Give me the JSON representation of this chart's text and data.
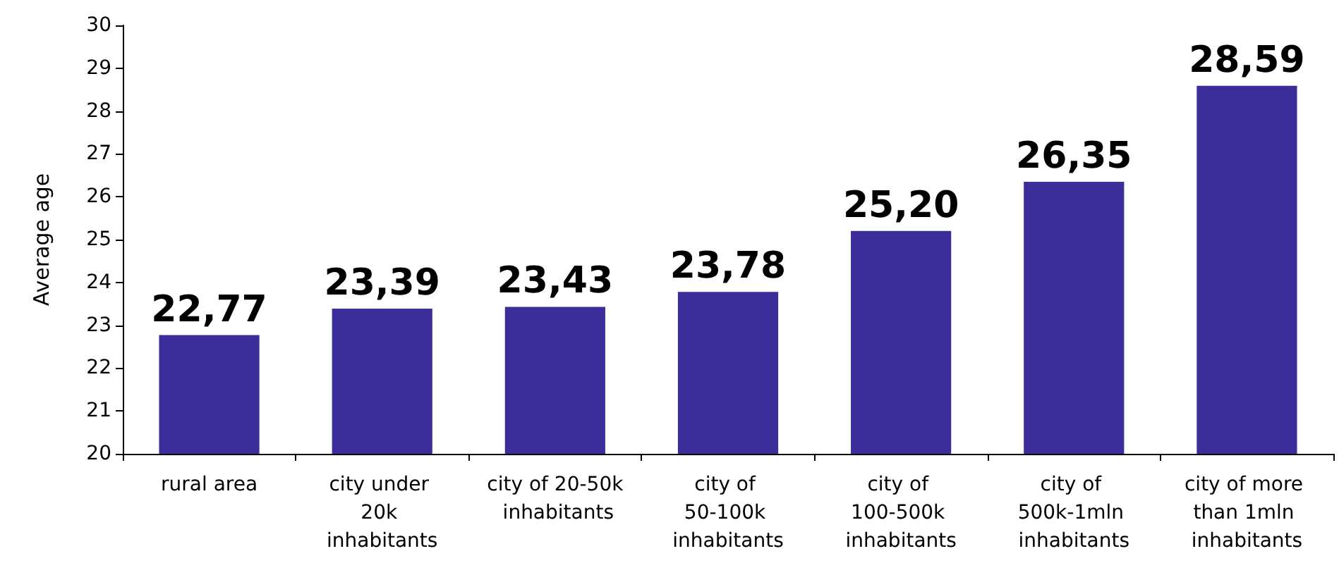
{
  "chart_data": {
    "type": "bar",
    "ylabel": "Average age",
    "categories": [
      "rural area",
      "city under 20k inhabitants",
      "city of 20-50k inhabitants",
      "city of 50-100k inhabitants",
      "city of 100-500k inhabitants",
      "city of 500k-1mln inhabitants",
      "city of more than 1mln inhabitants"
    ],
    "values": [
      22.77,
      23.39,
      23.43,
      23.78,
      25.2,
      26.35,
      28.59
    ],
    "value_labels": [
      "22,77",
      "23,39",
      "23,43",
      "23,78",
      "25,20",
      "26,35",
      "28,59"
    ],
    "color": "#3b2d9a",
    "ylim": [
      20,
      30
    ],
    "yticks": [
      20,
      21,
      22,
      23,
      24,
      25,
      26,
      27,
      28,
      29,
      30
    ],
    "grid": false
  }
}
